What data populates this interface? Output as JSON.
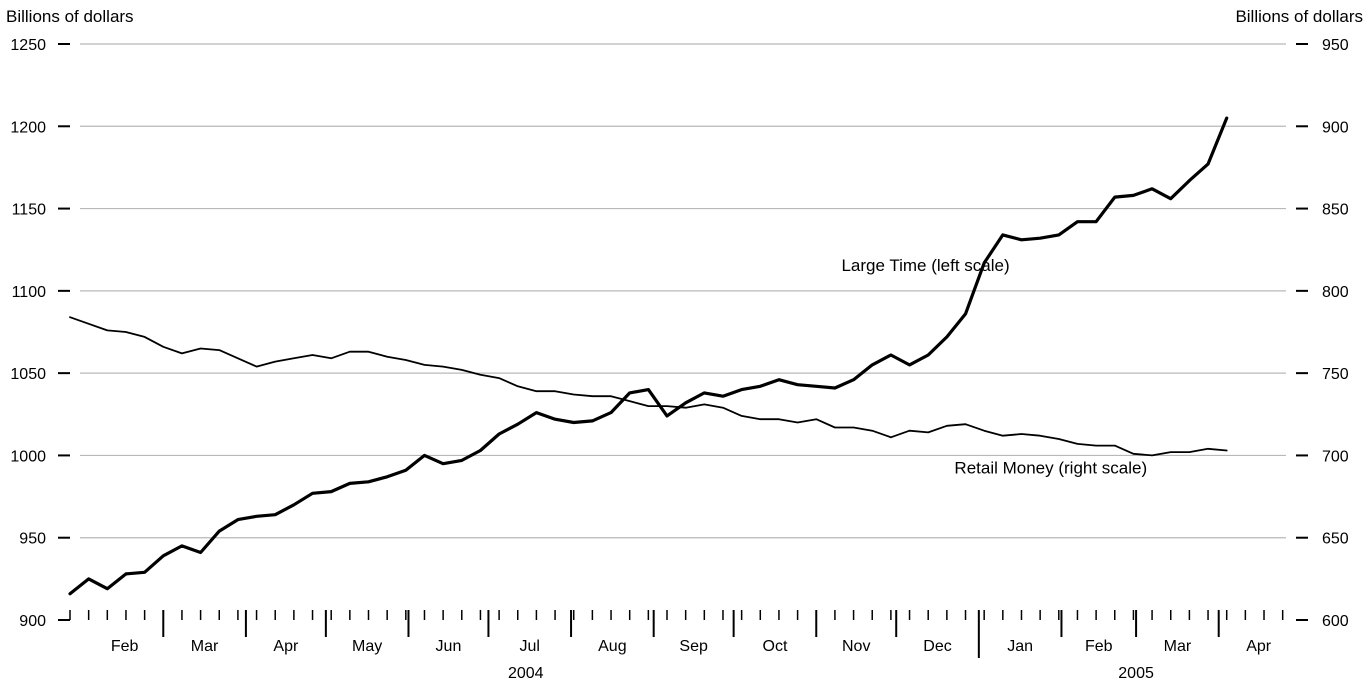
{
  "chart_data": {
    "type": "line",
    "left_axis": {
      "title": "Billions of dollars",
      "ylim": [
        900,
        1250
      ],
      "ticks": [
        900,
        950,
        1000,
        1050,
        1100,
        1150,
        1200,
        1250
      ]
    },
    "right_axis": {
      "title": "Billions of dollars",
      "ylim": [
        600,
        950
      ],
      "ticks": [
        600,
        650,
        700,
        750,
        800,
        850,
        900,
        950
      ]
    },
    "grid": true,
    "x_axis": {
      "start": "2004-01-26",
      "end": "2005-04-30",
      "month_labels": [
        {
          "label": "Feb",
          "date": "2004-02-01"
        },
        {
          "label": "Mar",
          "date": "2004-03-01"
        },
        {
          "label": "Apr",
          "date": "2004-04-01"
        },
        {
          "label": "May",
          "date": "2004-05-01"
        },
        {
          "label": "Jun",
          "date": "2004-06-01"
        },
        {
          "label": "Jul",
          "date": "2004-07-01"
        },
        {
          "label": "Aug",
          "date": "2004-08-01"
        },
        {
          "label": "Sep",
          "date": "2004-09-01"
        },
        {
          "label": "Oct",
          "date": "2004-10-01"
        },
        {
          "label": "Nov",
          "date": "2004-11-01"
        },
        {
          "label": "Dec",
          "date": "2004-12-01"
        },
        {
          "label": "Jan",
          "date": "2005-01-01"
        },
        {
          "label": "Feb",
          "date": "2005-02-01"
        },
        {
          "label": "Mar",
          "date": "2005-03-01"
        },
        {
          "label": "Apr",
          "date": "2005-04-01"
        }
      ],
      "year_labels": [
        {
          "label": "2004",
          "date": "2004-07-15"
        },
        {
          "label": "2005",
          "date": "2005-03-01"
        }
      ]
    },
    "series": [
      {
        "name": "Large Time (left scale)",
        "axis": "left",
        "line_width": 3.2,
        "label_anchor": {
          "date": "2004-12-12",
          "value": 1112
        },
        "points": [
          [
            "2004-01-26",
            916
          ],
          [
            "2004-02-02",
            925
          ],
          [
            "2004-02-09",
            919
          ],
          [
            "2004-02-16",
            928
          ],
          [
            "2004-02-23",
            929
          ],
          [
            "2004-03-01",
            939
          ],
          [
            "2004-03-08",
            945
          ],
          [
            "2004-03-15",
            941
          ],
          [
            "2004-03-22",
            954
          ],
          [
            "2004-03-29",
            961
          ],
          [
            "2004-04-05",
            963
          ],
          [
            "2004-04-12",
            964
          ],
          [
            "2004-04-19",
            970
          ],
          [
            "2004-04-26",
            977
          ],
          [
            "2004-05-03",
            978
          ],
          [
            "2004-05-10",
            983
          ],
          [
            "2004-05-17",
            984
          ],
          [
            "2004-05-24",
            987
          ],
          [
            "2004-05-31",
            991
          ],
          [
            "2004-06-07",
            1000
          ],
          [
            "2004-06-14",
            995
          ],
          [
            "2004-06-21",
            997
          ],
          [
            "2004-06-28",
            1003
          ],
          [
            "2004-07-05",
            1013
          ],
          [
            "2004-07-12",
            1019
          ],
          [
            "2004-07-19",
            1026
          ],
          [
            "2004-07-26",
            1022
          ],
          [
            "2004-08-02",
            1020
          ],
          [
            "2004-08-09",
            1021
          ],
          [
            "2004-08-16",
            1026
          ],
          [
            "2004-08-23",
            1038
          ],
          [
            "2004-08-30",
            1040
          ],
          [
            "2004-09-06",
            1024
          ],
          [
            "2004-09-13",
            1032
          ],
          [
            "2004-09-20",
            1038
          ],
          [
            "2004-09-27",
            1036
          ],
          [
            "2004-10-04",
            1040
          ],
          [
            "2004-10-11",
            1042
          ],
          [
            "2004-10-18",
            1046
          ],
          [
            "2004-10-25",
            1043
          ],
          [
            "2004-11-01",
            1042
          ],
          [
            "2004-11-08",
            1041
          ],
          [
            "2004-11-15",
            1046
          ],
          [
            "2004-11-22",
            1055
          ],
          [
            "2004-11-29",
            1061
          ],
          [
            "2004-12-06",
            1055
          ],
          [
            "2004-12-13",
            1061
          ],
          [
            "2004-12-20",
            1072
          ],
          [
            "2004-12-27",
            1086
          ],
          [
            "2005-01-03",
            1117
          ],
          [
            "2005-01-10",
            1134
          ],
          [
            "2005-01-17",
            1131
          ],
          [
            "2005-01-24",
            1132
          ],
          [
            "2005-01-31",
            1134
          ],
          [
            "2005-02-07",
            1142
          ],
          [
            "2005-02-14",
            1142
          ],
          [
            "2005-02-21",
            1157
          ],
          [
            "2005-02-28",
            1158
          ],
          [
            "2005-03-07",
            1162
          ],
          [
            "2005-03-14",
            1156
          ],
          [
            "2005-03-21",
            1167
          ],
          [
            "2005-03-28",
            1177
          ],
          [
            "2005-04-04",
            1205
          ]
        ]
      },
      {
        "name": "Retail Money (right scale)",
        "axis": "right",
        "line_width": 1.8,
        "label_anchor": {
          "date": "2005-01-28",
          "value": 689
        },
        "points": [
          [
            "2004-01-26",
            784
          ],
          [
            "2004-02-02",
            780
          ],
          [
            "2004-02-09",
            776
          ],
          [
            "2004-02-16",
            775
          ],
          [
            "2004-02-23",
            772
          ],
          [
            "2004-03-01",
            766
          ],
          [
            "2004-03-08",
            762
          ],
          [
            "2004-03-15",
            765
          ],
          [
            "2004-03-22",
            764
          ],
          [
            "2004-03-29",
            759
          ],
          [
            "2004-04-05",
            754
          ],
          [
            "2004-04-12",
            757
          ],
          [
            "2004-04-19",
            759
          ],
          [
            "2004-04-26",
            761
          ],
          [
            "2004-05-03",
            759
          ],
          [
            "2004-05-10",
            763
          ],
          [
            "2004-05-17",
            763
          ],
          [
            "2004-05-24",
            760
          ],
          [
            "2004-05-31",
            758
          ],
          [
            "2004-06-07",
            755
          ],
          [
            "2004-06-14",
            754
          ],
          [
            "2004-06-21",
            752
          ],
          [
            "2004-06-28",
            749
          ],
          [
            "2004-07-05",
            747
          ],
          [
            "2004-07-12",
            742
          ],
          [
            "2004-07-19",
            739
          ],
          [
            "2004-07-26",
            739
          ],
          [
            "2004-08-02",
            737
          ],
          [
            "2004-08-09",
            736
          ],
          [
            "2004-08-16",
            736
          ],
          [
            "2004-08-23",
            733
          ],
          [
            "2004-08-30",
            730
          ],
          [
            "2004-09-06",
            730
          ],
          [
            "2004-09-13",
            729
          ],
          [
            "2004-09-20",
            731
          ],
          [
            "2004-09-27",
            729
          ],
          [
            "2004-10-04",
            724
          ],
          [
            "2004-10-11",
            722
          ],
          [
            "2004-10-18",
            722
          ],
          [
            "2004-10-25",
            720
          ],
          [
            "2004-11-01",
            722
          ],
          [
            "2004-11-08",
            717
          ],
          [
            "2004-11-15",
            717
          ],
          [
            "2004-11-22",
            715
          ],
          [
            "2004-11-29",
            711
          ],
          [
            "2004-12-06",
            715
          ],
          [
            "2004-12-13",
            714
          ],
          [
            "2004-12-20",
            718
          ],
          [
            "2004-12-27",
            719
          ],
          [
            "2005-01-03",
            715
          ],
          [
            "2005-01-10",
            712
          ],
          [
            "2005-01-17",
            713
          ],
          [
            "2005-01-24",
            712
          ],
          [
            "2005-01-31",
            710
          ],
          [
            "2005-02-07",
            707
          ],
          [
            "2005-02-14",
            706
          ],
          [
            "2005-02-21",
            706
          ],
          [
            "2005-02-28",
            701
          ],
          [
            "2005-03-07",
            700
          ],
          [
            "2005-03-14",
            702
          ],
          [
            "2005-03-21",
            702
          ],
          [
            "2005-03-28",
            704
          ],
          [
            "2005-04-04",
            703
          ]
        ]
      }
    ]
  }
}
